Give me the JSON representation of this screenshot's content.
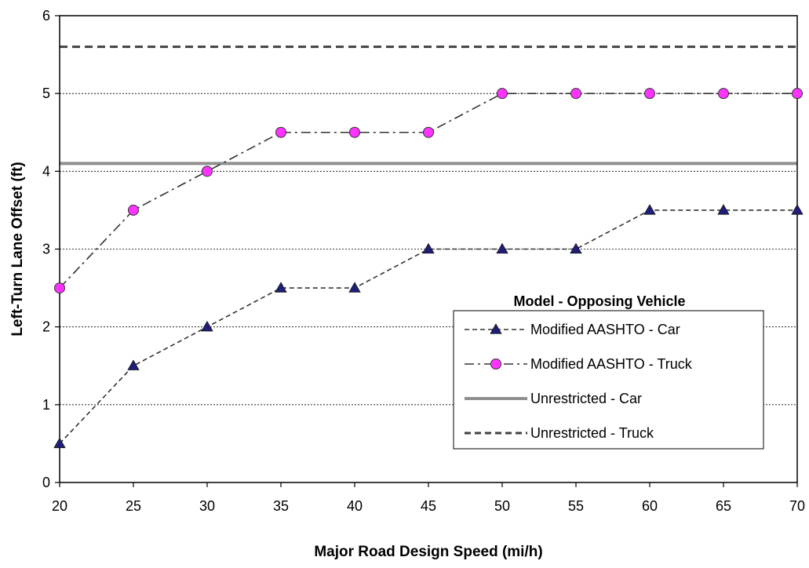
{
  "chart_data": {
    "type": "line",
    "xlabel": "Major Road Design Speed (mi/h)",
    "ylabel": "Left-Turn Lane Offset (ft)",
    "xlim": [
      20,
      70
    ],
    "ylim": [
      0,
      6
    ],
    "x_ticks": [
      20,
      25,
      30,
      35,
      40,
      45,
      50,
      55,
      60,
      65,
      70
    ],
    "y_ticks": [
      0,
      1,
      2,
      3,
      4,
      5,
      6
    ],
    "grid": "horizontal dashed",
    "legend": {
      "title": "Model - Opposing Vehicle",
      "placement": "lower-right"
    },
    "series": [
      {
        "name": "Modified AASHTO - Car",
        "color": "#1f1f7a",
        "line_style": "dashed",
        "marker": "triangle",
        "x": [
          20,
          25,
          30,
          35,
          40,
          45,
          50,
          55,
          60,
          65,
          70
        ],
        "values": [
          0.5,
          1.5,
          2.0,
          2.5,
          2.5,
          3.0,
          3.0,
          3.0,
          3.5,
          3.5,
          3.5
        ]
      },
      {
        "name": "Modified AASHTO - Truck",
        "color": "#ff33ff",
        "line_style": "dash-dot",
        "marker": "circle",
        "x": [
          20,
          25,
          30,
          35,
          40,
          45,
          50,
          55,
          60,
          65,
          70
        ],
        "values": [
          2.5,
          3.5,
          4.0,
          4.5,
          4.5,
          4.5,
          5.0,
          5.0,
          5.0,
          5.0,
          5.0
        ]
      },
      {
        "name": "Unrestricted - Car",
        "color": "#909090",
        "line_style": "solid",
        "marker": "none",
        "x": [
          20,
          70
        ],
        "values": [
          4.1,
          4.1
        ]
      },
      {
        "name": "Unrestricted - Truck",
        "color": "#404040",
        "line_style": "dashed",
        "marker": "none",
        "x": [
          20,
          70
        ],
        "values": [
          5.6,
          5.6
        ]
      }
    ]
  }
}
